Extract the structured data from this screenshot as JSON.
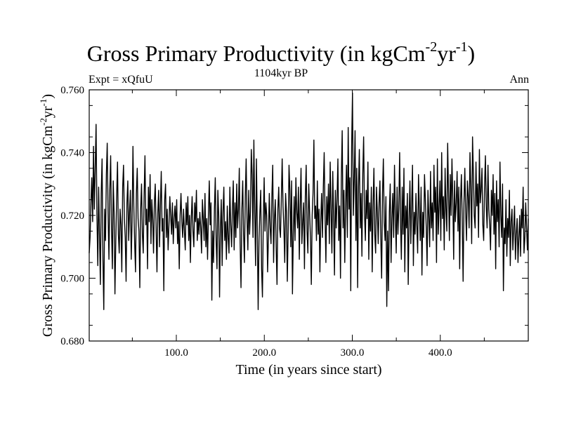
{
  "chart_data": {
    "type": "line",
    "title": {
      "main": "Gross Primary Productivity (in kgCm",
      "sup1": "-2",
      "mid": "yr",
      "sup2": "-1",
      "end": ")"
    },
    "subtitle": "1104kyr BP",
    "experiment_label": "Expt = xQfuU",
    "season_label": "Ann",
    "xlabel": "Time (in years since start)",
    "ylabel": {
      "main": "Gross Primary Productivity (in kgCm",
      "sup1": "-2",
      "mid": "yr",
      "sup2": "-1",
      "end": ")"
    },
    "xlim": [
      1,
      500
    ],
    "ylim": [
      0.68,
      0.76
    ],
    "xticks": [
      100,
      200,
      300,
      400
    ],
    "xtick_labels": [
      "100.0",
      "200.0",
      "300.0",
      "400.0"
    ],
    "yticks": [
      0.68,
      0.7,
      0.72,
      0.74,
      0.76
    ],
    "ytick_labels": [
      "0.680",
      "0.700",
      "0.720",
      "0.740",
      "0.760"
    ],
    "grid": false,
    "series": [
      {
        "name": "GPP annual mean",
        "color": "#000000",
        "x_start": 1,
        "x_step": 1,
        "values": [
          0.708,
          0.713,
          0.724,
          0.732,
          0.718,
          0.742,
          0.722,
          0.735,
          0.749,
          0.72,
          0.704,
          0.729,
          0.714,
          0.698,
          0.727,
          0.738,
          0.706,
          0.69,
          0.722,
          0.712,
          0.733,
          0.743,
          0.721,
          0.706,
          0.728,
          0.739,
          0.716,
          0.703,
          0.731,
          0.721,
          0.695,
          0.712,
          0.726,
          0.737,
          0.714,
          0.708,
          0.722,
          0.717,
          0.702,
          0.729,
          0.736,
          0.719,
          0.713,
          0.699,
          0.724,
          0.731,
          0.712,
          0.721,
          0.728,
          0.706,
          0.718,
          0.742,
          0.723,
          0.711,
          0.702,
          0.727,
          0.735,
          0.719,
          0.715,
          0.697,
          0.722,
          0.73,
          0.714,
          0.708,
          0.726,
          0.739,
          0.717,
          0.722,
          0.703,
          0.729,
          0.718,
          0.733,
          0.711,
          0.725,
          0.719,
          0.708,
          0.724,
          0.73,
          0.716,
          0.702,
          0.721,
          0.728,
          0.71,
          0.723,
          0.734,
          0.715,
          0.719,
          0.696,
          0.725,
          0.73,
          0.713,
          0.722,
          0.709,
          0.717,
          0.726,
          0.72,
          0.714,
          0.724,
          0.711,
          0.719,
          0.723,
          0.716,
          0.725,
          0.711,
          0.718,
          0.703,
          0.72,
          0.727,
          0.718,
          0.713,
          0.722,
          0.715,
          0.709,
          0.724,
          0.717,
          0.726,
          0.712,
          0.72,
          0.705,
          0.719,
          0.726,
          0.715,
          0.71,
          0.724,
          0.718,
          0.728,
          0.712,
          0.719,
          0.714,
          0.721,
          0.716,
          0.708,
          0.725,
          0.719,
          0.712,
          0.727,
          0.71,
          0.719,
          0.706,
          0.72,
          0.731,
          0.717,
          0.724,
          0.693,
          0.715,
          0.705,
          0.722,
          0.732,
          0.712,
          0.703,
          0.728,
          0.72,
          0.694,
          0.716,
          0.725,
          0.704,
          0.721,
          0.729,
          0.712,
          0.718,
          0.706,
          0.723,
          0.713,
          0.708,
          0.729,
          0.717,
          0.71,
          0.722,
          0.731,
          0.709,
          0.724,
          0.713,
          0.73,
          0.716,
          0.722,
          0.735,
          0.711,
          0.697,
          0.722,
          0.731,
          0.714,
          0.705,
          0.726,
          0.738,
          0.719,
          0.709,
          0.728,
          0.714,
          0.721,
          0.741,
          0.733,
          0.713,
          0.744,
          0.721,
          0.704,
          0.738,
          0.716,
          0.69,
          0.712,
          0.721,
          0.728,
          0.703,
          0.694,
          0.718,
          0.732,
          0.715,
          0.724,
          0.72,
          0.702,
          0.713,
          0.727,
          0.716,
          0.711,
          0.726,
          0.736,
          0.705,
          0.719,
          0.725,
          0.71,
          0.698,
          0.722,
          0.729,
          0.716,
          0.713,
          0.725,
          0.738,
          0.723,
          0.716,
          0.705,
          0.727,
          0.721,
          0.699,
          0.715,
          0.736,
          0.728,
          0.71,
          0.731,
          0.695,
          0.714,
          0.726,
          0.712,
          0.732,
          0.721,
          0.716,
          0.729,
          0.706,
          0.723,
          0.735,
          0.711,
          0.718,
          0.724,
          0.703,
          0.726,
          0.736,
          0.715,
          0.708,
          0.73,
          0.721,
          0.713,
          0.698,
          0.72,
          0.727,
          0.744,
          0.719,
          0.723,
          0.712,
          0.731,
          0.714,
          0.722,
          0.702,
          0.718,
          0.727,
          0.713,
          0.729,
          0.74,
          0.72,
          0.705,
          0.726,
          0.717,
          0.73,
          0.711,
          0.737,
          0.722,
          0.708,
          0.734,
          0.719,
          0.701,
          0.728,
          0.716,
          0.725,
          0.738,
          0.712,
          0.723,
          0.7,
          0.732,
          0.747,
          0.716,
          0.728,
          0.705,
          0.724,
          0.736,
          0.713,
          0.748,
          0.722,
          0.732,
          0.696,
          0.742,
          0.759,
          0.72,
          0.731,
          0.747,
          0.712,
          0.735,
          0.697,
          0.729,
          0.741,
          0.716,
          0.727,
          0.707,
          0.733,
          0.745,
          0.721,
          0.712,
          0.728,
          0.719,
          0.737,
          0.706,
          0.724,
          0.715,
          0.729,
          0.702,
          0.723,
          0.735,
          0.714,
          0.708,
          0.729,
          0.721,
          0.711,
          0.724,
          0.731,
          0.713,
          0.7,
          0.727,
          0.738,
          0.718,
          0.712,
          0.726,
          0.691,
          0.715,
          0.696,
          0.721,
          0.73,
          0.705,
          0.719,
          0.727,
          0.713,
          0.736,
          0.72,
          0.708,
          0.729,
          0.714,
          0.722,
          0.74,
          0.718,
          0.706,
          0.729,
          0.714,
          0.735,
          0.702,
          0.723,
          0.716,
          0.727,
          0.698,
          0.719,
          0.731,
          0.711,
          0.723,
          0.736,
          0.704,
          0.721,
          0.714,
          0.727,
          0.717,
          0.708,
          0.733,
          0.722,
          0.712,
          0.729,
          0.701,
          0.721,
          0.713,
          0.733,
          0.725,
          0.716,
          0.704,
          0.728,
          0.72,
          0.71,
          0.734,
          0.716,
          0.724,
          0.712,
          0.736,
          0.721,
          0.729,
          0.705,
          0.738,
          0.714,
          0.723,
          0.731,
          0.712,
          0.74,
          0.719,
          0.726,
          0.709,
          0.735,
          0.722,
          0.715,
          0.743,
          0.727,
          0.712,
          0.733,
          0.72,
          0.738,
          0.725,
          0.706,
          0.731,
          0.718,
          0.724,
          0.734,
          0.715,
          0.729,
          0.703,
          0.725,
          0.733,
          0.718,
          0.699,
          0.724,
          0.735,
          0.721,
          0.712,
          0.731,
          0.726,
          0.716,
          0.74,
          0.728,
          0.711,
          0.745,
          0.733,
          0.72,
          0.716,
          0.737,
          0.723,
          0.73,
          0.713,
          0.741,
          0.724,
          0.728,
          0.735,
          0.717,
          0.712,
          0.729,
          0.739,
          0.723,
          0.716,
          0.736,
          0.722,
          0.717,
          0.709,
          0.728,
          0.72,
          0.733,
          0.714,
          0.727,
          0.703,
          0.731,
          0.718,
          0.725,
          0.71,
          0.737,
          0.72,
          0.713,
          0.73,
          0.696,
          0.716,
          0.711,
          0.725,
          0.707,
          0.719,
          0.713,
          0.728,
          0.704,
          0.718,
          0.722,
          0.709,
          0.716,
          0.723,
          0.706,
          0.714,
          0.719,
          0.705,
          0.713,
          0.72,
          0.707,
          0.722,
          0.716,
          0.729,
          0.708,
          0.713,
          0.724,
          0.716,
          0.709,
          0.719
        ]
      }
    ]
  }
}
